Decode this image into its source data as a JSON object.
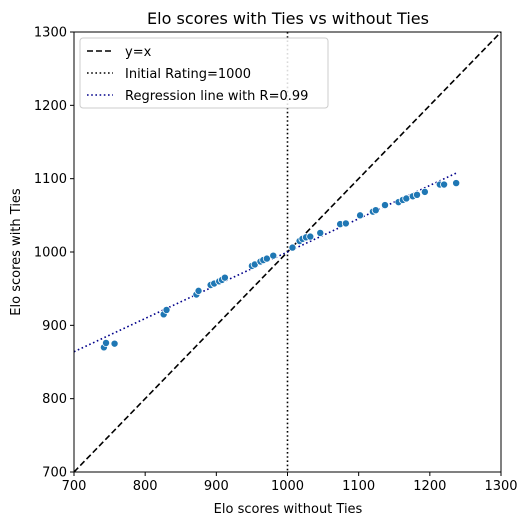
{
  "chart_data": {
    "type": "scatter",
    "title": "Elo scores with Ties vs without Ties",
    "xlabel": "Elo scores without Ties",
    "ylabel": "Elo scores with Ties",
    "xlim": [
      700,
      1300
    ],
    "ylim": [
      700,
      1300
    ],
    "xticks": [
      "700",
      "800",
      "900",
      "1000",
      "1100",
      "1200",
      "1300"
    ],
    "yticks": [
      "700",
      "800",
      "900",
      "1000",
      "1100",
      "1200",
      "1300"
    ],
    "legend_position": "top-left",
    "grid": false,
    "legend": [
      {
        "label": "y=x",
        "style": "dashed",
        "color": "#000000"
      },
      {
        "label": "Initial Rating=1000",
        "style": "dotted",
        "color": "#000000"
      },
      {
        "label": "Regression line with R=0.99",
        "style": "dotted",
        "color": "#00008b"
      }
    ],
    "reference_lines": {
      "identity": {
        "from": [
          700,
          700
        ],
        "to": [
          1300,
          1300
        ]
      },
      "initial_rating_x": 1000,
      "regression": {
        "from": [
          700,
          864
        ],
        "to": [
          1238,
          1108
        ]
      }
    },
    "point_color": "#1f77b4",
    "points": [
      {
        "x": 742,
        "y": 870
      },
      {
        "x": 745,
        "y": 876
      },
      {
        "x": 757,
        "y": 875
      },
      {
        "x": 826,
        "y": 915
      },
      {
        "x": 830,
        "y": 921
      },
      {
        "x": 872,
        "y": 942
      },
      {
        "x": 875,
        "y": 947
      },
      {
        "x": 892,
        "y": 955
      },
      {
        "x": 897,
        "y": 957
      },
      {
        "x": 904,
        "y": 960
      },
      {
        "x": 908,
        "y": 962
      },
      {
        "x": 912,
        "y": 965
      },
      {
        "x": 950,
        "y": 981
      },
      {
        "x": 954,
        "y": 983
      },
      {
        "x": 962,
        "y": 987
      },
      {
        "x": 966,
        "y": 989
      },
      {
        "x": 971,
        "y": 991
      },
      {
        "x": 980,
        "y": 995
      },
      {
        "x": 1007,
        "y": 1006
      },
      {
        "x": 1017,
        "y": 1015
      },
      {
        "x": 1021,
        "y": 1018
      },
      {
        "x": 1026,
        "y": 1020
      },
      {
        "x": 1032,
        "y": 1021
      },
      {
        "x": 1046,
        "y": 1026
      },
      {
        "x": 1074,
        "y": 1038
      },
      {
        "x": 1082,
        "y": 1039
      },
      {
        "x": 1102,
        "y": 1050
      },
      {
        "x": 1120,
        "y": 1055
      },
      {
        "x": 1124,
        "y": 1057
      },
      {
        "x": 1137,
        "y": 1064
      },
      {
        "x": 1156,
        "y": 1068
      },
      {
        "x": 1162,
        "y": 1071
      },
      {
        "x": 1167,
        "y": 1073
      },
      {
        "x": 1176,
        "y": 1076
      },
      {
        "x": 1182,
        "y": 1078
      },
      {
        "x": 1193,
        "y": 1082
      },
      {
        "x": 1214,
        "y": 1092
      },
      {
        "x": 1220,
        "y": 1092
      },
      {
        "x": 1237,
        "y": 1094
      }
    ]
  }
}
